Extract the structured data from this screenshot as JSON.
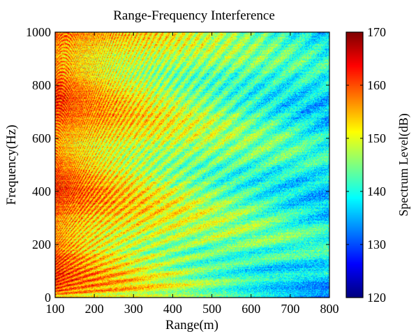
{
  "chart_data": {
    "type": "heatmap",
    "title": "Range-Frequency Interference",
    "xlabel": "Range(m)",
    "ylabel": "Frequency(Hz)",
    "xlim": [
      100,
      800
    ],
    "ylim": [
      0,
      1000
    ],
    "xticks": [
      "100",
      "200",
      "300",
      "400",
      "500",
      "600",
      "700",
      "800"
    ],
    "yticks": [
      "0",
      "200",
      "400",
      "600",
      "800",
      "1000"
    ],
    "colorbar": {
      "label": "Spectrum Level(dB)",
      "range": [
        120,
        170
      ],
      "ticks": [
        "120",
        "130",
        "140",
        "150",
        "160",
        "170"
      ],
      "colormap": "jet"
    },
    "description_values": {
      "near_range_high_level_dB": 160,
      "far_range_low_level_dB": 138,
      "striation_pattern": "curved interference striations fanning out from low range"
    }
  }
}
